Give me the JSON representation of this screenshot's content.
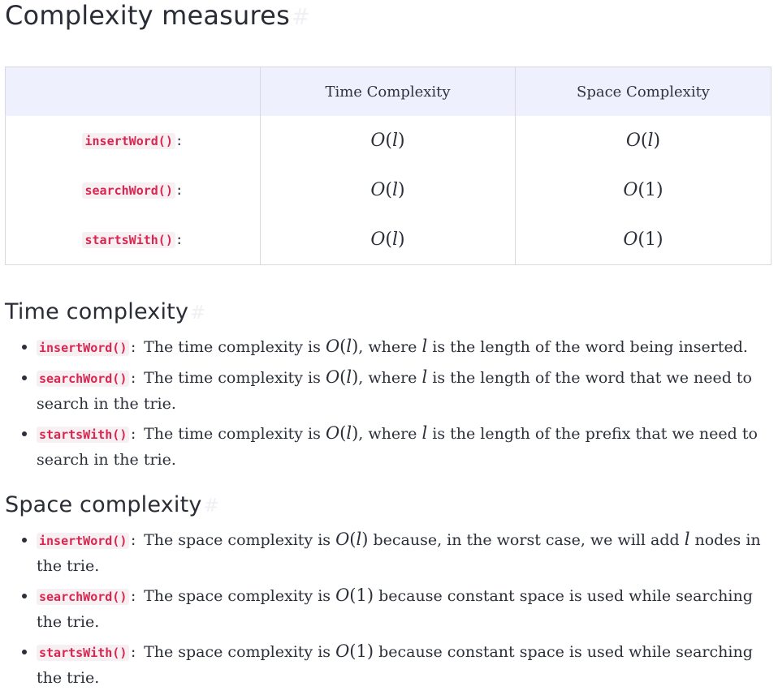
{
  "heading": "Complexity measures",
  "anchor_symbol": "#",
  "table": {
    "headers": [
      "",
      "Time Complexity",
      "Space Complexity"
    ],
    "rows": [
      {
        "method": "insertWord()",
        "colon": ":",
        "time": {
          "o": "O",
          "open": "(",
          "arg": "l",
          "close": ")"
        },
        "space": {
          "o": "O",
          "open": "(",
          "arg": "l",
          "close": ")"
        }
      },
      {
        "method": "searchWord()",
        "colon": ":",
        "time": {
          "o": "O",
          "open": "(",
          "arg": "l",
          "close": ")"
        },
        "space": {
          "o": "O",
          "open": "(",
          "arg": "1",
          "close": ")"
        }
      },
      {
        "method": "startsWith()",
        "colon": ":",
        "time": {
          "o": "O",
          "open": "(",
          "arg": "l",
          "close": ")"
        },
        "space": {
          "o": "O",
          "open": "(",
          "arg": "1",
          "close": ")"
        }
      }
    ]
  },
  "time_section": {
    "title": "Time complexity",
    "items": [
      {
        "method": "insertWord()",
        "colon": ":",
        "pre": "The time complexity is",
        "o": "O",
        "open": "(",
        "arg": "l",
        "close": ")",
        "mid": ", where",
        "var": "l",
        "post": "is the length of the word being inserted."
      },
      {
        "method": "searchWord()",
        "colon": ":",
        "pre": "The time complexity is",
        "o": "O",
        "open": "(",
        "arg": "l",
        "close": ")",
        "mid": ", where",
        "var": "l",
        "post": "is the length of the word that we need to search in the trie."
      },
      {
        "method": "startsWith()",
        "colon": ":",
        "pre": "The time complexity is",
        "o": "O",
        "open": "(",
        "arg": "l",
        "close": ")",
        "mid": ", where",
        "var": "l",
        "post": "is the length of the prefix that we need to search in the trie."
      }
    ]
  },
  "space_section": {
    "title": "Space complexity",
    "items": [
      {
        "method": "insertWord()",
        "colon": ":",
        "pre": "The space complexity is",
        "o": "O",
        "open": "(",
        "arg": "l",
        "close": ")",
        "mid": " because, in the worst case, we will add",
        "var": "l",
        "post": "nodes in the trie."
      },
      {
        "method": "searchWord()",
        "colon": ":",
        "pre": "The space complexity is",
        "o": "O",
        "open": "(",
        "arg": "1",
        "close": ")",
        "mid": " because constant space is used while searching the trie.",
        "var": "",
        "post": ""
      },
      {
        "method": "startsWith()",
        "colon": ":",
        "pre": "The space complexity is",
        "o": "O",
        "open": "(",
        "arg": "1",
        "close": ")",
        "mid": " because constant space is used while searching the trie.",
        "var": "",
        "post": ""
      }
    ]
  },
  "colors": {
    "code_text": "#d9254f",
    "code_bg": "#f7f0f3",
    "table_header_bg": "#eef0fd",
    "border": "#d8dae0"
  }
}
